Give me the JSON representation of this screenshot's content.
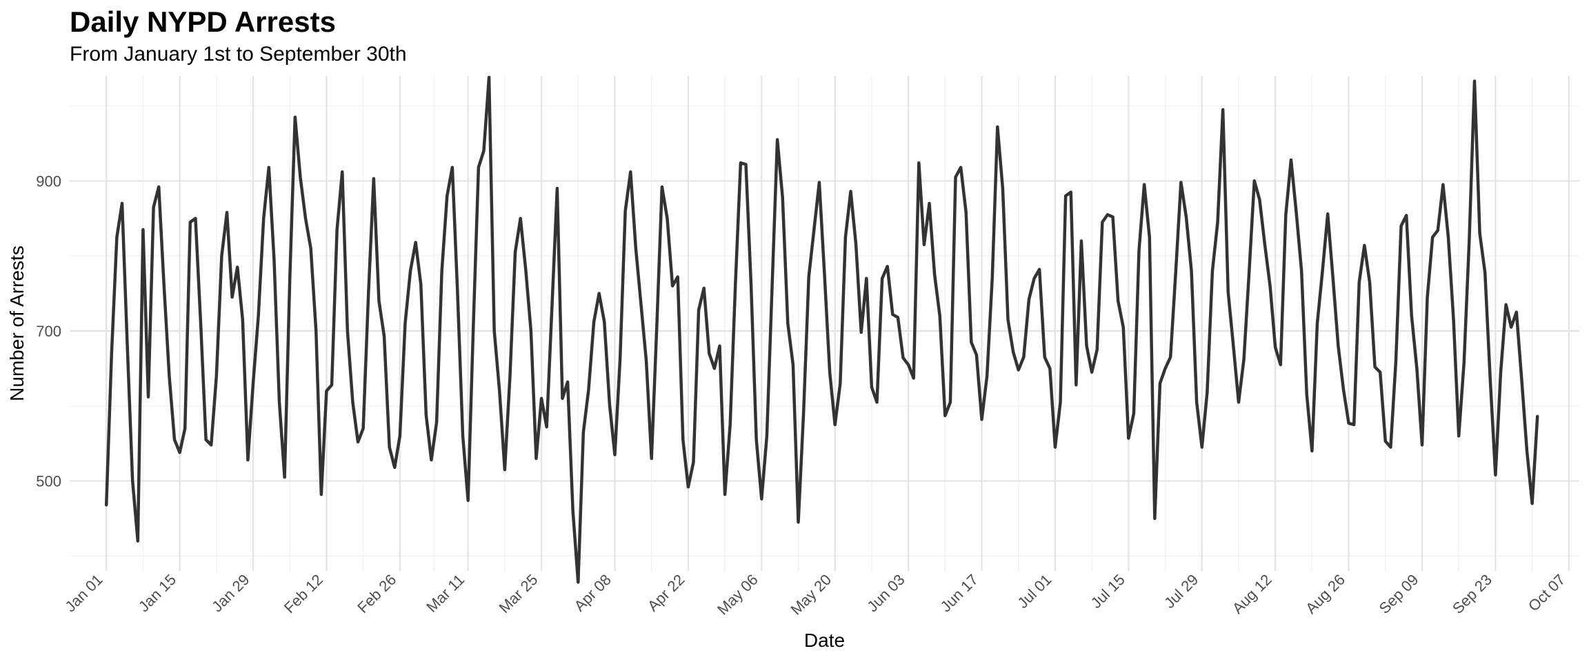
{
  "chart_data": {
    "type": "line",
    "title": "Daily NYPD Arrests",
    "subtitle": "From January 1st to September 30th",
    "xlabel": "Date",
    "ylabel": "Number of Arrests",
    "x_ticks": [
      "Jan 01",
      "Jan 15",
      "Jan 29",
      "Feb 12",
      "Feb 26",
      "Mar 11",
      "Mar 25",
      "Apr 08",
      "Apr 22",
      "May 06",
      "May 20",
      "Jun 03",
      "Jun 17",
      "Jul 01",
      "Jul 15",
      "Jul 29",
      "Aug 12",
      "Aug 26",
      "Sep 09",
      "Sep 23",
      "Oct 07"
    ],
    "y_ticks": [
      500,
      700,
      900
    ],
    "xlim": [
      "Dec 25",
      "Oct 09"
    ],
    "ylim": [
      380,
      1040
    ],
    "grid": true,
    "line_color": "#333333",
    "series": [
      {
        "start": "Jan 01",
        "values": [
          468,
          670,
          825,
          870,
          680,
          500,
          420,
          835,
          612,
          865,
          892,
          760,
          640,
          555,
          538,
          570,
          845,
          850,
          710,
          555,
          548,
          640,
          800,
          858,
          745,
          785,
          715,
          528,
          630,
          720,
          850,
          918,
          795,
          605,
          505,
          770,
          985,
          905,
          850,
          810,
          700,
          482,
          620,
          628,
          835,
          912,
          700,
          605,
          552,
          570,
          750,
          903,
          740,
          693,
          545,
          518,
          560,
          710,
          780,
          818,
          762,
          588,
          528,
          578,
          780,
          880,
          918,
          750,
          560,
          474,
          705,
          918,
          940,
          1038,
          700,
          620,
          515,
          640,
          805,
          850,
          782,
          700,
          530,
          610,
          572,
          730,
          890,
          610,
          632,
          460,
          365,
          565,
          622,
          712,
          750,
          712,
          602,
          535,
          662,
          860,
          912,
          810,
          735,
          660,
          530,
          705,
          892,
          850,
          760,
          772,
          555,
          492,
          525,
          728,
          757,
          670,
          650,
          680,
          482,
          575,
          762,
          924,
          922,
          760,
          555,
          476,
          560,
          758,
          955,
          878,
          710,
          655,
          445,
          590,
          772,
          835,
          898,
          775,
          645,
          575,
          630,
          825,
          886,
          815,
          698,
          770,
          625,
          605,
          770,
          786,
          722,
          718,
          664,
          655,
          637,
          924,
          815,
          870,
          775,
          720,
          587,
          605,
          905,
          918,
          858,
          685,
          668,
          582,
          640,
          770,
          972,
          890,
          715,
          672,
          648,
          665,
          742,
          770,
          782,
          665,
          650,
          545,
          605,
          880,
          885,
          628,
          820,
          680,
          645,
          675,
          845,
          855,
          852,
          740,
          705,
          557,
          590,
          808,
          895,
          825,
          450,
          630,
          650,
          665,
          778,
          898,
          852,
          780,
          605,
          545,
          618,
          780,
          845,
          995,
          752,
          680,
          605,
          662,
          778,
          900,
          875,
          815,
          760,
          678,
          655,
          855,
          928,
          858,
          780,
          615,
          540,
          710,
          780,
          856,
          770,
          680,
          622,
          577,
          575,
          765,
          814,
          765,
          652,
          645,
          553,
          545,
          660,
          840,
          854,
          720,
          650,
          548,
          745,
          825,
          834,
          895,
          825,
          715,
          560,
          658,
          822,
          1033,
          830,
          778,
          635,
          508,
          645,
          735,
          705,
          725,
          635,
          540,
          470,
          586
        ]
      }
    ]
  }
}
